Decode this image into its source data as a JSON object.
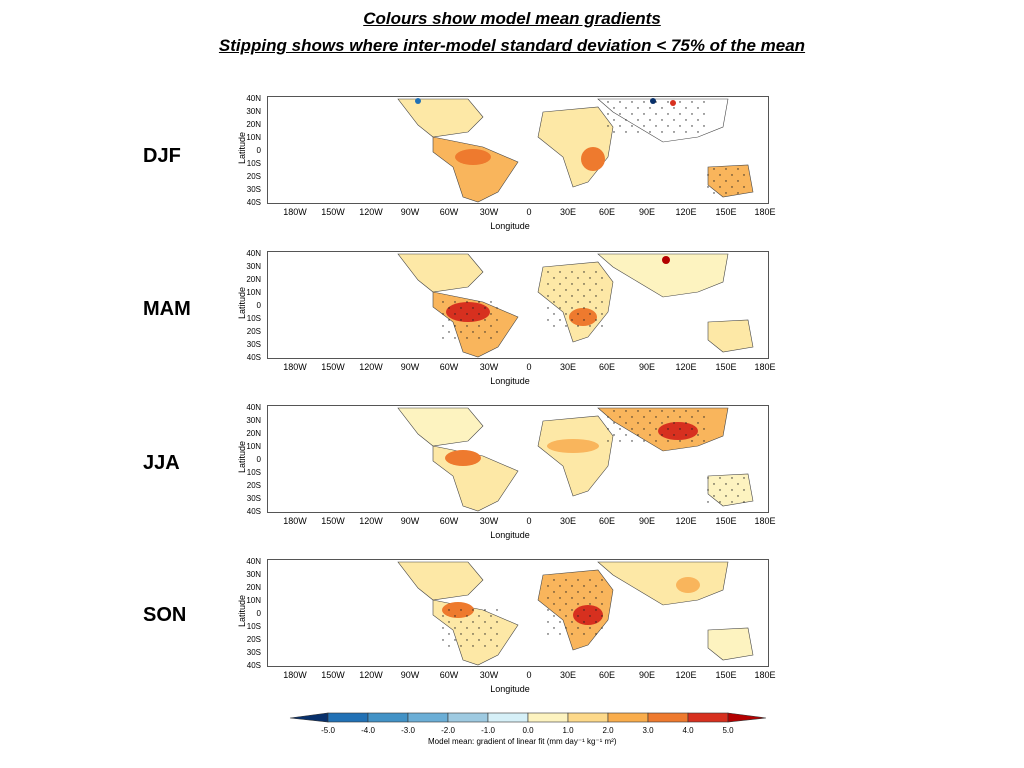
{
  "title_line1": "Colours show model mean gradients",
  "title_line2": "Stipping shows where inter-model standard deviation < 75% of the mean",
  "panels": [
    {
      "season": "DJF"
    },
    {
      "season": "MAM"
    },
    {
      "season": "JJA"
    },
    {
      "season": "SON"
    }
  ],
  "y_axis_label": "Latitude",
  "x_axis_label": "Longitude",
  "lat_ticks": [
    "40N",
    "30N",
    "20N",
    "10N",
    "0",
    "10S",
    "20S",
    "30S",
    "40S"
  ],
  "lon_ticks": [
    "180W",
    "150W",
    "120W",
    "90W",
    "60W",
    "30W",
    "0",
    "30E",
    "60E",
    "90E",
    "120E",
    "150E",
    "180E"
  ],
  "colorbar": {
    "labels": [
      "-5.0",
      "-4.0",
      "-3.0",
      "-2.0",
      "-1.0",
      "0.0",
      "1.0",
      "2.0",
      "3.0",
      "4.0",
      "5.0"
    ],
    "colors": [
      "#08306b",
      "#2171b5",
      "#4292c6",
      "#6baed6",
      "#9ecae1",
      "#d6f0f8",
      "#fdf3c0",
      "#fdd98a",
      "#f9ad4c",
      "#ee7a2e",
      "#d7301f",
      "#b30000"
    ],
    "title": "Model mean: gradient of linear fit (mm day⁻¹ kg⁻¹ m²)"
  },
  "land_color": "#ffffff",
  "warm_colors": {
    "light": "#fde8a6",
    "mid": "#f9b55c",
    "strong": "#ee7a2e",
    "max": "#d7301f"
  }
}
